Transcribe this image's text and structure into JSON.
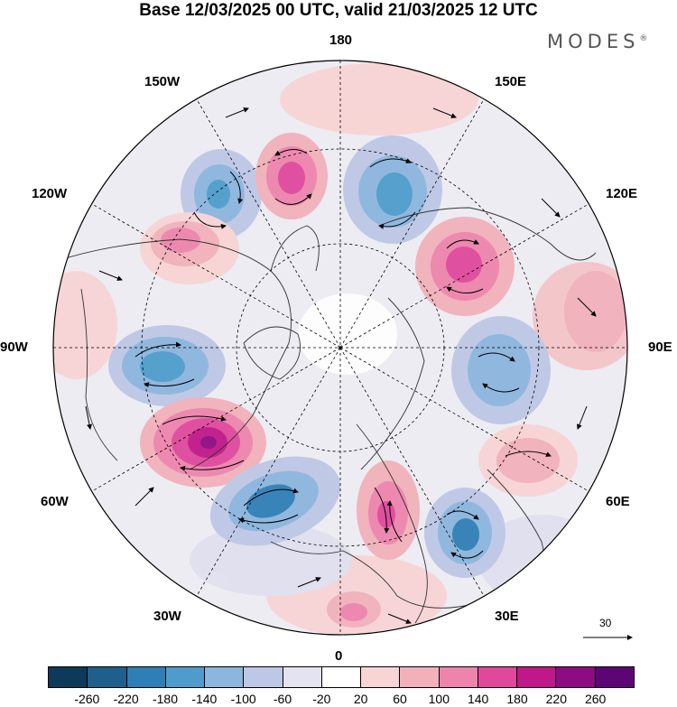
{
  "title": "Base 12/03/2025 00 UTC, valid 21/03/2025 12 UTC",
  "logo": {
    "text": "MODES",
    "mark": "®"
  },
  "longitude_labels": {
    "n180": "180",
    "e150": "150E",
    "e120": "120E",
    "e90": "90E",
    "e60": "60E",
    "e30": "30E",
    "s0": "0",
    "w30": "30W",
    "w60": "60W",
    "w90": "90W",
    "w120": "120W",
    "w150": "150W"
  },
  "reference_vector": {
    "label": "30"
  },
  "colorbar": {
    "colors": [
      "#0e3a5a",
      "#1f5f8b",
      "#2f7fb6",
      "#4f9ccc",
      "#8cb6dd",
      "#bdc8e6",
      "#e4e4f0",
      "#ffffff",
      "#f8d4d4",
      "#f2b0ba",
      "#ee84ac",
      "#e0489c",
      "#c01888",
      "#8e0c82",
      "#5b0673"
    ],
    "ticks": [
      "-260",
      "-220",
      "-180",
      "-140",
      "-100",
      "-60",
      "-20",
      "20",
      "60",
      "100",
      "140",
      "180",
      "220",
      "260"
    ]
  },
  "map": {
    "projection": "north-polar-stereographic",
    "anomaly_centers": [
      {
        "lon": -140,
        "value": -140
      },
      {
        "lon": -170,
        "value": 200
      },
      {
        "lon": 160,
        "value": -160
      },
      {
        "lon": -125,
        "value": 140
      },
      {
        "lon": 125,
        "value": 220
      },
      {
        "lon": 100,
        "value": 100
      },
      {
        "lon": -95,
        "value": -140
      },
      {
        "lon": 75,
        "value": -120
      },
      {
        "lon": -65,
        "value": 260
      },
      {
        "lon": 50,
        "value": 80
      },
      {
        "lon": -40,
        "value": -180
      },
      {
        "lon": 15,
        "value": 160
      },
      {
        "lon": 35,
        "value": -160
      },
      {
        "lon": 5,
        "value": 100
      }
    ]
  }
}
